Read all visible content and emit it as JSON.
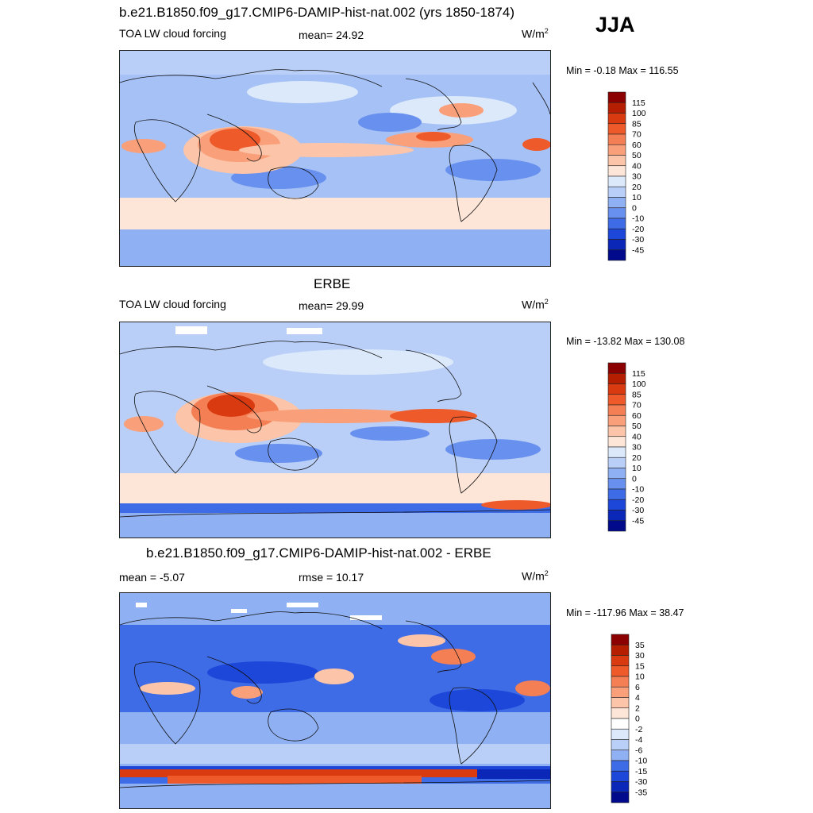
{
  "season": "JJA",
  "units_base": "W/m",
  "units_exp": "2",
  "panels": [
    {
      "title": "b.e21.B1850.f09_g17.CMIP6-DAMIP-hist-nat.002 (yrs 1850-1874)",
      "left_label": "TOA LW cloud forcing",
      "mid_label": "mean=  24.92",
      "minmax": "Min =  -0.18 Max = 116.55",
      "levels": [
        "115",
        "100",
        "85",
        "70",
        "60",
        "50",
        "40",
        "30",
        "20",
        "10",
        "0",
        "-10",
        "-20",
        "-30",
        "-45"
      ],
      "colors": [
        "#8b0000",
        "#b51e00",
        "#d93a10",
        "#ee5a2a",
        "#f47f55",
        "#f9a07b",
        "#fcc4a8",
        "#fde6d8",
        "#dce9fb",
        "#b9cff7",
        "#8fb0f2",
        "#6890ee",
        "#3e6be6",
        "#1c47d9",
        "#0a27b8",
        "#000a8a"
      ]
    },
    {
      "title": "ERBE",
      "left_label": "TOA LW cloud forcing",
      "mid_label": "mean=  29.99",
      "minmax": "Min = -13.82 Max = 130.08",
      "levels": [
        "115",
        "100",
        "85",
        "70",
        "60",
        "50",
        "40",
        "30",
        "20",
        "10",
        "0",
        "-10",
        "-20",
        "-30",
        "-45"
      ],
      "colors": [
        "#8b0000",
        "#b51e00",
        "#d93a10",
        "#ee5a2a",
        "#f47f55",
        "#f9a07b",
        "#fcc4a8",
        "#fde6d8",
        "#dce9fb",
        "#b9cff7",
        "#8fb0f2",
        "#6890ee",
        "#3e6be6",
        "#1c47d9",
        "#0a27b8",
        "#000a8a"
      ]
    },
    {
      "title": "b.e21.B1850.f09_g17.CMIP6-DAMIP-hist-nat.002 - ERBE",
      "left_label": "mean =  -5.07",
      "mid_label": "rmse =  10.17",
      "minmax": "Min = -117.96 Max =  38.47",
      "levels": [
        "35",
        "30",
        "15",
        "10",
        "6",
        "4",
        "2",
        "0",
        "-2",
        "-4",
        "-6",
        "-10",
        "-15",
        "-30",
        "-35"
      ],
      "colors": [
        "#8b0000",
        "#b51e00",
        "#d93a10",
        "#ee5a2a",
        "#f47f55",
        "#f9a07b",
        "#fcc4a8",
        "#fde6d8",
        "#ffffff",
        "#dce9fb",
        "#b9cff7",
        "#8fb0f2",
        "#3e6be6",
        "#1c47d9",
        "#0a27b8",
        "#000a8a"
      ]
    }
  ]
}
